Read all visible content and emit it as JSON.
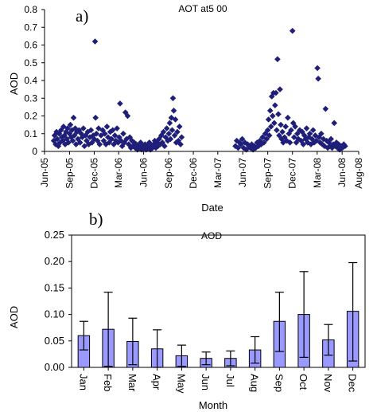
{
  "chart_data": [
    {
      "panel": "a)",
      "type": "scatter",
      "title": "AOT at5 00",
      "xlabel": "Date",
      "ylabel": "AOD",
      "ylim": [
        0,
        0.8
      ],
      "yticks": [
        "0",
        "0.1",
        "0.2",
        "0.3",
        "0.4",
        "0.5",
        "0.6",
        "0.7",
        "0.8"
      ],
      "xlim": [
        "2005-06-01",
        "2008-08-01"
      ],
      "xticks": [
        "Jun-05",
        "Sep-05",
        "Dec-05",
        "Mar-06",
        "Jun-06",
        "Sep-06",
        "Dec-06",
        "Mar-07",
        "Jun-07",
        "Sep-07",
        "Dec-07",
        "Mar-08",
        "Jun-08",
        "Aug-08"
      ],
      "marker": "diamond",
      "marker_color": "#1f1f7a",
      "grid": false,
      "legend": "none",
      "points": [
        [
          "2005-07-05",
          0.06
        ],
        [
          "2005-07-08",
          0.09
        ],
        [
          "2005-07-12",
          0.04
        ],
        [
          "2005-07-15",
          0.11
        ],
        [
          "2005-07-18",
          0.07
        ],
        [
          "2005-07-22",
          0.03
        ],
        [
          "2005-07-25",
          0.1
        ],
        [
          "2005-07-28",
          0.05
        ],
        [
          "2005-08-01",
          0.12
        ],
        [
          "2005-08-04",
          0.08
        ],
        [
          "2005-08-07",
          0.06
        ],
        [
          "2005-08-10",
          0.14
        ],
        [
          "2005-08-13",
          0.09
        ],
        [
          "2005-08-16",
          0.04
        ],
        [
          "2005-08-19",
          0.11
        ],
        [
          "2005-08-22",
          0.07
        ],
        [
          "2005-08-25",
          0.13
        ],
        [
          "2005-08-28",
          0.05
        ],
        [
          "2005-09-01",
          0.1
        ],
        [
          "2005-09-04",
          0.15
        ],
        [
          "2005-09-07",
          0.08
        ],
        [
          "2005-09-10",
          0.12
        ],
        [
          "2005-09-13",
          0.06
        ],
        [
          "2005-09-16",
          0.19
        ],
        [
          "2005-09-19",
          0.09
        ],
        [
          "2005-09-22",
          0.13
        ],
        [
          "2005-09-25",
          0.04
        ],
        [
          "2005-09-28",
          0.11
        ],
        [
          "2005-10-02",
          0.07
        ],
        [
          "2005-10-06",
          0.12
        ],
        [
          "2005-10-10",
          0.05
        ],
        [
          "2005-10-14",
          0.1
        ],
        [
          "2005-10-18",
          0.08
        ],
        [
          "2005-10-22",
          0.13
        ],
        [
          "2005-10-26",
          0.03
        ],
        [
          "2005-10-30",
          0.09
        ],
        [
          "2005-11-03",
          0.06
        ],
        [
          "2005-11-07",
          0.11
        ],
        [
          "2005-11-11",
          0.04
        ],
        [
          "2005-11-15",
          0.08
        ],
        [
          "2005-11-19",
          0.12
        ],
        [
          "2005-11-23",
          0.05
        ],
        [
          "2005-11-27",
          0.09
        ],
        [
          "2005-12-01",
          0.07
        ],
        [
          "2005-12-04",
          0.62
        ],
        [
          "2005-12-06",
          0.19
        ],
        [
          "2005-12-09",
          0.1
        ],
        [
          "2005-12-13",
          0.06
        ],
        [
          "2005-12-17",
          0.13
        ],
        [
          "2005-12-21",
          0.04
        ],
        [
          "2005-12-26",
          0.09
        ],
        [
          "2006-01-01",
          0.12
        ],
        [
          "2006-01-05",
          0.06
        ],
        [
          "2006-01-09",
          0.1
        ],
        [
          "2006-01-13",
          0.04
        ],
        [
          "2006-01-17",
          0.14
        ],
        [
          "2006-01-21",
          0.08
        ],
        [
          "2006-01-25",
          0.05
        ],
        [
          "2006-01-29",
          0.11
        ],
        [
          "2006-02-03",
          0.07
        ],
        [
          "2006-02-07",
          0.12
        ],
        [
          "2006-02-11",
          0.04
        ],
        [
          "2006-02-15",
          0.09
        ],
        [
          "2006-02-19",
          0.06
        ],
        [
          "2006-02-23",
          0.13
        ],
        [
          "2006-02-27",
          0.05
        ],
        [
          "2006-03-03",
          0.08
        ],
        [
          "2006-03-06",
          0.27
        ],
        [
          "2006-03-10",
          0.06
        ],
        [
          "2006-03-14",
          0.03
        ],
        [
          "2006-03-18",
          0.1
        ],
        [
          "2006-03-22",
          0.05
        ],
        [
          "2006-03-26",
          0.22
        ],
        [
          "2006-03-30",
          0.07
        ],
        [
          "2006-04-03",
          0.2
        ],
        [
          "2006-04-07",
          0.04
        ],
        [
          "2006-04-11",
          0.08
        ],
        [
          "2006-04-15",
          0.02
        ],
        [
          "2006-04-19",
          0.06
        ],
        [
          "2006-04-23",
          0.03
        ],
        [
          "2006-04-27",
          0.05
        ],
        [
          "2006-05-01",
          0.02
        ],
        [
          "2006-05-05",
          0.04
        ],
        [
          "2006-05-09",
          0.01
        ],
        [
          "2006-05-13",
          0.03
        ],
        [
          "2006-05-17",
          0.02
        ],
        [
          "2006-05-21",
          0.05
        ],
        [
          "2006-05-25",
          0.01
        ],
        [
          "2006-05-29",
          0.03
        ],
        [
          "2006-06-02",
          0.02
        ],
        [
          "2006-06-06",
          0.04
        ],
        [
          "2006-06-10",
          0.01
        ],
        [
          "2006-06-14",
          0.03
        ],
        [
          "2006-06-18",
          0.02
        ],
        [
          "2006-06-22",
          0.05
        ],
        [
          "2006-06-26",
          0.01
        ],
        [
          "2006-06-30",
          0.03
        ],
        [
          "2006-07-04",
          0.02
        ],
        [
          "2006-07-08",
          0.04
        ],
        [
          "2006-07-12",
          0.06
        ],
        [
          "2006-07-16",
          0.02
        ],
        [
          "2006-07-20",
          0.05
        ],
        [
          "2006-07-24",
          0.03
        ],
        [
          "2006-07-28",
          0.07
        ],
        [
          "2006-08-01",
          0.04
        ],
        [
          "2006-08-05",
          0.09
        ],
        [
          "2006-08-09",
          0.05
        ],
        [
          "2006-08-13",
          0.11
        ],
        [
          "2006-08-17",
          0.03
        ],
        [
          "2006-08-21",
          0.08
        ],
        [
          "2006-08-25",
          0.13
        ],
        [
          "2006-08-29",
          0.06
        ],
        [
          "2006-09-02",
          0.1
        ],
        [
          "2006-09-05",
          0.16
        ],
        [
          "2006-09-08",
          0.07
        ],
        [
          "2006-09-11",
          0.19
        ],
        [
          "2006-09-14",
          0.12
        ],
        [
          "2006-09-17",
          0.3
        ],
        [
          "2006-09-20",
          0.23
        ],
        [
          "2006-09-23",
          0.09
        ],
        [
          "2006-09-26",
          0.18
        ],
        [
          "2006-09-29",
          0.05
        ],
        [
          "2006-10-03",
          0.11
        ],
        [
          "2006-10-07",
          0.06
        ],
        [
          "2006-10-11",
          0.14
        ],
        [
          "2006-10-15",
          0.04
        ],
        [
          "2006-10-19",
          0.08
        ],
        [
          "2007-05-05",
          0.03
        ],
        [
          "2007-05-10",
          0.06
        ],
        [
          "2007-05-15",
          0.02
        ],
        [
          "2007-05-20",
          0.05
        ],
        [
          "2007-05-25",
          0.04
        ],
        [
          "2007-05-30",
          0.07
        ],
        [
          "2007-06-04",
          0.02
        ],
        [
          "2007-06-09",
          0.05
        ],
        [
          "2007-06-14",
          0.01
        ],
        [
          "2007-06-19",
          0.04
        ],
        [
          "2007-06-24",
          0.03
        ],
        [
          "2007-06-29",
          0.02
        ],
        [
          "2007-07-04",
          0.04
        ],
        [
          "2007-07-09",
          0.01
        ],
        [
          "2007-07-14",
          0.03
        ],
        [
          "2007-07-19",
          0.02
        ],
        [
          "2007-07-24",
          0.05
        ],
        [
          "2007-07-29",
          0.03
        ],
        [
          "2007-08-03",
          0.06
        ],
        [
          "2007-08-08",
          0.04
        ],
        [
          "2007-08-13",
          0.08
        ],
        [
          "2007-08-18",
          0.05
        ],
        [
          "2007-08-23",
          0.1
        ],
        [
          "2007-08-28",
          0.07
        ],
        [
          "2007-09-01",
          0.12
        ],
        [
          "2007-09-04",
          0.18
        ],
        [
          "2007-09-07",
          0.09
        ],
        [
          "2007-09-10",
          0.23
        ],
        [
          "2007-09-13",
          0.14
        ],
        [
          "2007-09-16",
          0.31
        ],
        [
          "2007-09-19",
          0.2
        ],
        [
          "2007-09-22",
          0.33
        ],
        [
          "2007-09-25",
          0.16
        ],
        [
          "2007-09-28",
          0.26
        ],
        [
          "2007-10-01",
          0.33
        ],
        [
          "2007-10-04",
          0.12
        ],
        [
          "2007-10-07",
          0.52
        ],
        [
          "2007-10-10",
          0.21
        ],
        [
          "2007-10-13",
          0.09
        ],
        [
          "2007-10-16",
          0.35
        ],
        [
          "2007-10-19",
          0.15
        ],
        [
          "2007-10-22",
          0.07
        ],
        [
          "2007-10-25",
          0.11
        ],
        [
          "2007-10-28",
          0.05
        ],
        [
          "2007-11-02",
          0.08
        ],
        [
          "2007-11-06",
          0.14
        ],
        [
          "2007-11-10",
          0.06
        ],
        [
          "2007-11-14",
          0.19
        ],
        [
          "2007-11-18",
          0.1
        ],
        [
          "2007-11-22",
          0.05
        ],
        [
          "2007-11-26",
          0.12
        ],
        [
          "2007-12-01",
          0.68
        ],
        [
          "2007-12-04",
          0.16
        ],
        [
          "2007-12-07",
          0.08
        ],
        [
          "2007-12-11",
          0.14
        ],
        [
          "2007-12-15",
          0.05
        ],
        [
          "2007-12-19",
          0.1
        ],
        [
          "2007-12-23",
          0.07
        ],
        [
          "2007-12-28",
          0.12
        ],
        [
          "2008-01-02",
          0.06
        ],
        [
          "2008-01-06",
          0.11
        ],
        [
          "2008-01-10",
          0.04
        ],
        [
          "2008-01-14",
          0.09
        ],
        [
          "2008-01-18",
          0.07
        ],
        [
          "2008-01-22",
          0.13
        ],
        [
          "2008-01-26",
          0.05
        ],
        [
          "2008-01-30",
          0.08
        ],
        [
          "2008-02-03",
          0.1
        ],
        [
          "2008-02-07",
          0.04
        ],
        [
          "2008-02-11",
          0.07
        ],
        [
          "2008-02-15",
          0.12
        ],
        [
          "2008-02-19",
          0.05
        ],
        [
          "2008-02-23",
          0.09
        ],
        [
          "2008-02-27",
          0.06
        ],
        [
          "2008-03-02",
          0.47
        ],
        [
          "2008-03-05",
          0.41
        ],
        [
          "2008-03-08",
          0.08
        ],
        [
          "2008-03-12",
          0.05
        ],
        [
          "2008-03-16",
          0.1
        ],
        [
          "2008-03-20",
          0.04
        ],
        [
          "2008-03-24",
          0.07
        ],
        [
          "2008-03-28",
          0.03
        ],
        [
          "2008-04-01",
          0.24
        ],
        [
          "2008-04-05",
          0.06
        ],
        [
          "2008-04-09",
          0.02
        ],
        [
          "2008-04-13",
          0.05
        ],
        [
          "2008-04-17",
          0.03
        ],
        [
          "2008-04-21",
          0.07
        ],
        [
          "2008-04-25",
          0.02
        ],
        [
          "2008-04-29",
          0.04
        ],
        [
          "2008-05-03",
          0.16
        ],
        [
          "2008-05-07",
          0.03
        ],
        [
          "2008-05-11",
          0.05
        ],
        [
          "2008-05-15",
          0.02
        ],
        [
          "2008-05-19",
          0.04
        ],
        [
          "2008-05-23",
          0.01
        ],
        [
          "2008-05-28",
          0.03
        ],
        [
          "2008-06-02",
          0.02
        ],
        [
          "2008-06-07",
          0.04
        ],
        [
          "2008-06-12",
          0.03
        ]
      ]
    },
    {
      "panel": "b)",
      "type": "bar",
      "title": "AOD",
      "xlabel": "Month",
      "ylabel": "AOD",
      "ylim": [
        0,
        0.25
      ],
      "yticks": [
        "0.00",
        "0.05",
        "0.10",
        "0.15",
        "0.20",
        "0.25"
      ],
      "categories": [
        "Jan",
        "Feb",
        "Mar",
        "Apr",
        "May",
        "Jun",
        "Jul",
        "Aug",
        "Sep",
        "Oct",
        "Nov",
        "Dec"
      ],
      "values": [
        0.06,
        0.072,
        0.049,
        0.035,
        0.022,
        0.017,
        0.017,
        0.033,
        0.087,
        0.1,
        0.052,
        0.106
      ],
      "error_upper": [
        0.087,
        0.142,
        0.093,
        0.071,
        0.042,
        0.029,
        0.031,
        0.058,
        0.142,
        0.181,
        0.081,
        0.198
      ],
      "error_lower": [
        0.033,
        0.002,
        0.005,
        0.0,
        0.002,
        0.005,
        0.003,
        0.008,
        0.03,
        0.019,
        0.023,
        0.012
      ],
      "bar_color": "#9999ff",
      "grid": false,
      "legend": "none"
    }
  ]
}
